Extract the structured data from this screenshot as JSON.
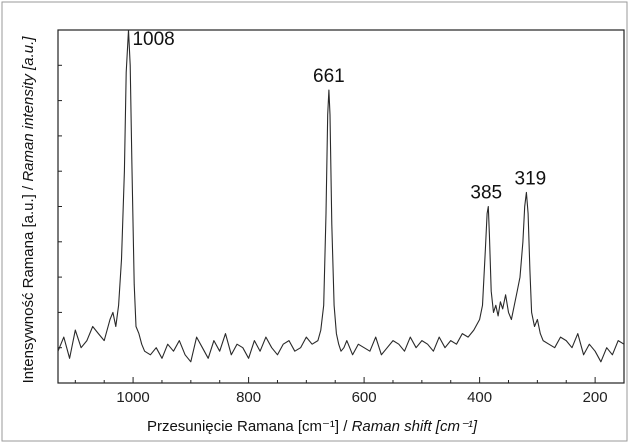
{
  "chart_data": {
    "type": "line",
    "xlabel": "Przesunięcie Ramana [cm⁻¹] / Raman shift [cm⁻¹]",
    "xlabel_main": "Przesunięcie Ramana [cm⁻¹] / ",
    "xlabel_italic": "Raman shift [cm⁻¹]",
    "ylabel": "Intensywność Ramana [a.u.] / Raman intensity [a.u.]",
    "ylabel_main": "Intensywność Ramana [a.u.] / ",
    "ylabel_italic": "Raman intensity [a.u.]",
    "xlim": [
      1130,
      150
    ],
    "x_reversed": true,
    "ylim": [
      0,
      100
    ],
    "y_ticks_labeled": false,
    "grid": false,
    "x_ticks": [
      1000,
      800,
      600,
      400,
      200
    ],
    "x_tick_labels": [
      "1000",
      "800",
      "600",
      "400",
      "200"
    ],
    "peaks": [
      {
        "x": 1008,
        "y": 100,
        "label": "1008"
      },
      {
        "x": 661,
        "y": 83,
        "label": "661"
      },
      {
        "x": 385,
        "y": 50,
        "label": "385"
      },
      {
        "x": 319,
        "y": 54,
        "label": "319"
      }
    ],
    "series": [
      {
        "x": [
          1130,
          1120,
          1110,
          1100,
          1090,
          1080,
          1070,
          1060,
          1050,
          1040,
          1035,
          1030,
          1025,
          1020,
          1015,
          1012,
          1008,
          1005,
          1002,
          998,
          995,
          990,
          985,
          980,
          970,
          960,
          950,
          940,
          930,
          920,
          910,
          900,
          890,
          880,
          870,
          860,
          850,
          840,
          830,
          820,
          810,
          800,
          790,
          780,
          770,
          760,
          750,
          740,
          730,
          720,
          710,
          700,
          690,
          680,
          675,
          670,
          666,
          663,
          661,
          659,
          656,
          652,
          648,
          644,
          640,
          635,
          630,
          620,
          610,
          600,
          590,
          580,
          570,
          560,
          550,
          540,
          530,
          520,
          510,
          500,
          490,
          480,
          470,
          460,
          450,
          440,
          430,
          420,
          410,
          400,
          395,
          390,
          387,
          385,
          383,
          380,
          376,
          372,
          368,
          364,
          360,
          355,
          350,
          345,
          340,
          335,
          330,
          325,
          322,
          319,
          316,
          313,
          310,
          305,
          300,
          295,
          290,
          280,
          270,
          260,
          250,
          240,
          230,
          220,
          210,
          200,
          190,
          180,
          170,
          160,
          150
        ],
        "y": [
          9,
          13,
          7,
          15,
          10,
          12,
          16,
          14,
          12,
          18,
          20,
          16,
          22,
          35,
          60,
          88,
          100,
          90,
          62,
          28,
          16,
          14,
          11,
          9,
          8,
          10,
          7,
          11,
          9,
          12,
          8,
          6,
          13,
          10,
          7,
          12,
          9,
          14,
          8,
          11,
          10,
          7,
          12,
          9,
          13,
          10,
          8,
          11,
          12,
          9,
          10,
          13,
          11,
          12,
          15,
          22,
          48,
          76,
          83,
          76,
          45,
          22,
          14,
          11,
          9,
          10,
          12,
          8,
          11,
          10,
          9,
          13,
          8,
          10,
          12,
          11,
          9,
          13,
          10,
          12,
          11,
          9,
          13,
          10,
          12,
          11,
          14,
          13,
          15,
          18,
          22,
          38,
          48,
          50,
          42,
          26,
          20,
          22,
          19,
          23,
          21,
          25,
          20,
          18,
          22,
          26,
          30,
          40,
          50,
          54,
          48,
          32,
          20,
          16,
          18,
          14,
          12,
          11,
          10,
          13,
          12,
          10,
          14,
          8,
          11,
          9,
          6,
          10,
          8,
          12,
          11
        ]
      }
    ]
  }
}
